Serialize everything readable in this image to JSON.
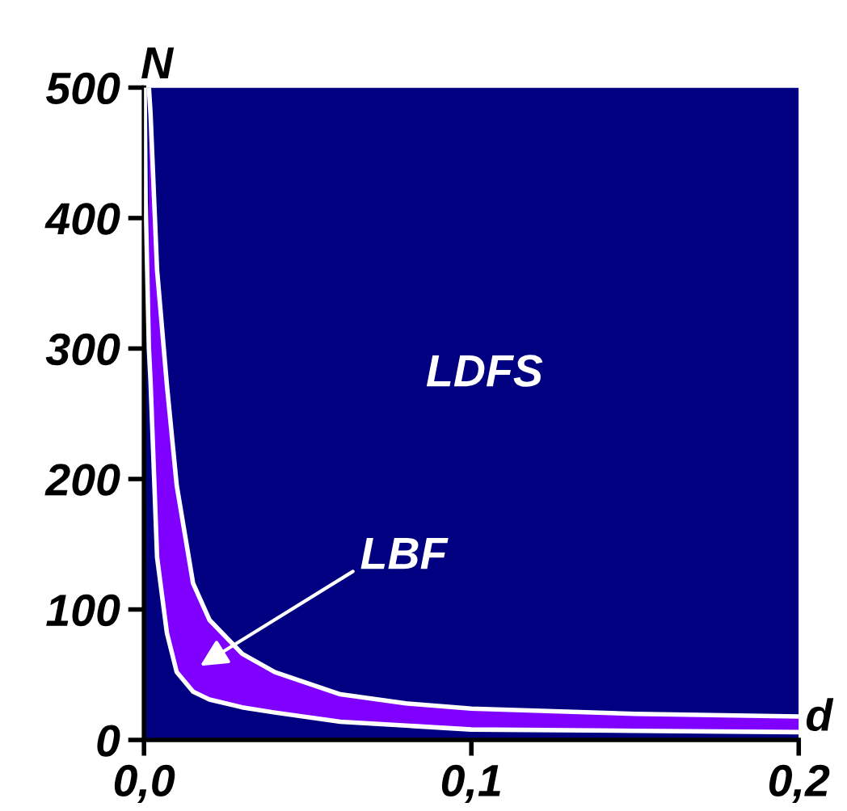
{
  "chart_data": {
    "type": "line",
    "xlabel": "d",
    "ylabel": "N",
    "xlim": [
      0,
      0.2
    ],
    "ylim": [
      0,
      500
    ],
    "xticks": [
      {
        "value": 0,
        "label": "0,0"
      },
      {
        "value": 0.1,
        "label": "0,1"
      },
      {
        "value": 0.2,
        "label": "0,2"
      }
    ],
    "yticks": [
      0,
      100,
      200,
      300,
      400,
      500
    ],
    "bands": [
      {
        "axis": "x",
        "from": 0,
        "to": 0.2,
        "color": "#000080"
      }
    ],
    "series": [
      {
        "color": "#ffffff",
        "x": [
          0.0015,
          0.002,
          0.004,
          0.007,
          0.01,
          0.015,
          0.02,
          0.03,
          0.04,
          0.06,
          0.08,
          0.1,
          0.15,
          0.2
        ],
        "values": [
          500,
          480,
          360,
          272,
          195,
          120,
          92,
          66,
          52,
          35,
          28,
          24,
          20,
          18
        ],
        "lower": [
          300,
          275,
          140,
          82,
          52,
          37,
          31,
          25,
          21,
          14,
          11,
          8,
          7,
          6
        ],
        "upper": [
          500,
          480,
          360,
          272,
          195,
          120,
          92,
          66,
          52,
          35,
          28,
          24,
          20,
          18
        ]
      },
      {
        "color": "#ffffff",
        "x": [
          0.0002,
          0.0005,
          0.0015,
          0.002,
          0.004,
          0.007,
          0.01,
          0.015,
          0.02,
          0.03,
          0.04,
          0.06,
          0.08,
          0.1,
          0.15,
          0.2
        ],
        "values": [
          500,
          414,
          300,
          275,
          140,
          82,
          52,
          37,
          31,
          25,
          21,
          14,
          11,
          8,
          7,
          6
        ]
      }
    ],
    "annotations": [
      "LDFS",
      "LBF"
    ],
    "grid": false,
    "legend": false,
    "marker": "none",
    "line_style": "solid"
  }
}
